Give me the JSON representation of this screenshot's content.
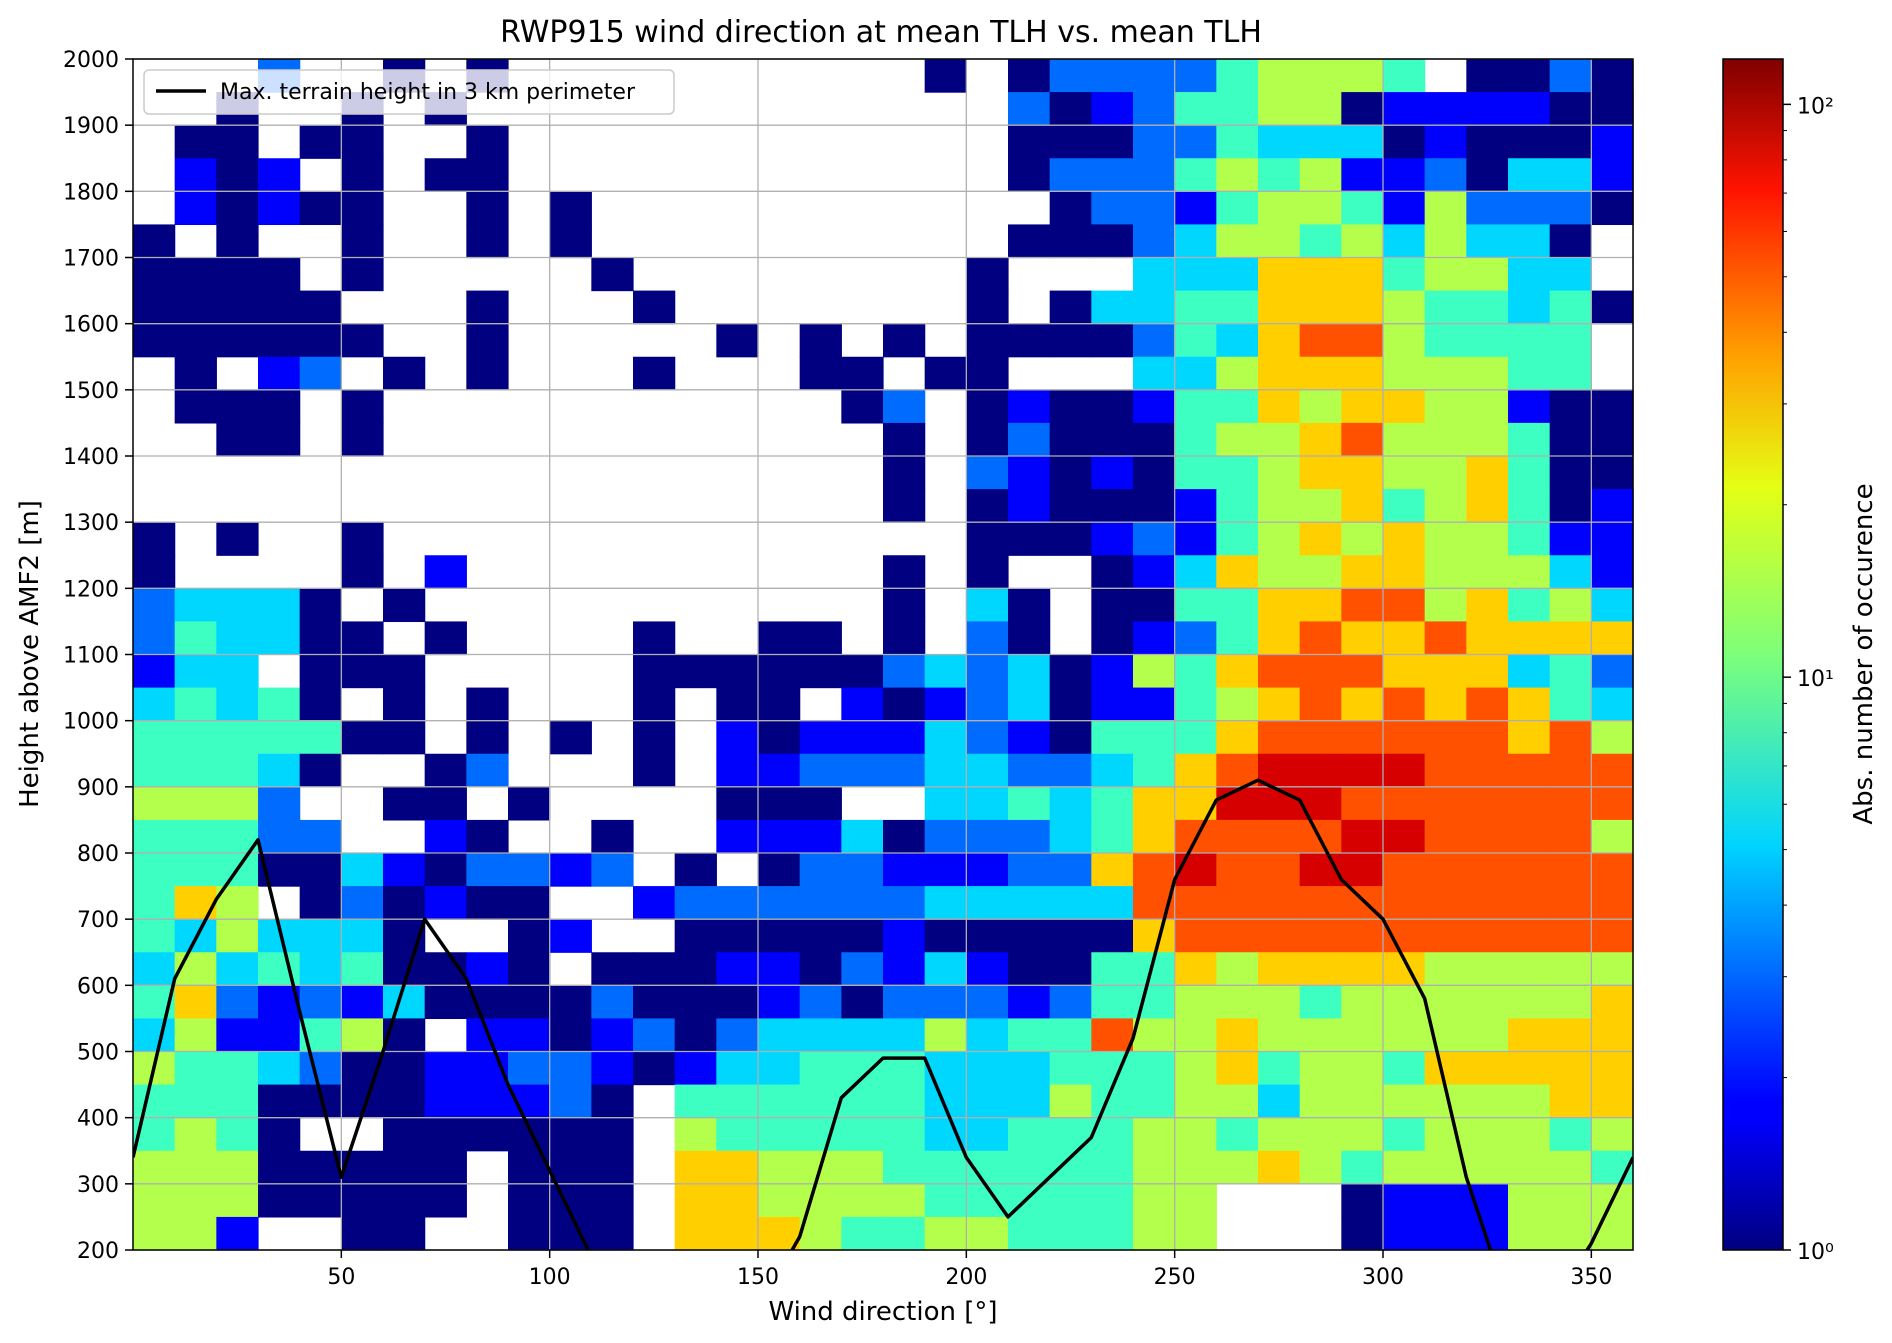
{
  "chart_data": {
    "type": "heatmap",
    "title": "RWP915 wind direction at mean TLH vs. mean TLH",
    "xlabel": "Wind direction [°]",
    "ylabel": "Height above AMF2 [m]",
    "xlim": [
      0,
      360
    ],
    "ylim": [
      200,
      2000
    ],
    "x_ticks": [
      50,
      100,
      150,
      200,
      250,
      300,
      350
    ],
    "y_ticks": [
      200,
      300,
      400,
      500,
      600,
      700,
      800,
      900,
      1000,
      1100,
      1200,
      1300,
      1400,
      1500,
      1600,
      1700,
      1800,
      1900,
      2000
    ],
    "x_bin_width": 10,
    "y_bin_height": 50,
    "y_bin_start": 200,
    "grid": true,
    "colormap": "jet",
    "color_scale": "log",
    "colorbar": {
      "label": "Abs. number of occurence",
      "min": 1,
      "max": 120,
      "ticks": [
        {
          "value": 1,
          "label": "10⁰"
        },
        {
          "value": 10,
          "label": "10¹"
        },
        {
          "value": 100,
          "label": "10²"
        }
      ]
    },
    "legend": {
      "placement": "top-left",
      "entries": [
        "Max. terrain height in 3 km perimeter"
      ]
    },
    "bin_legend": "0 = empty; 1..9 map to counts 1, 1.8, 3, 5, 8, 14, 25, 45, 80",
    "bin_counts_map": [
      0,
      1,
      1.8,
      3,
      5,
      8,
      14,
      25,
      45,
      80
    ],
    "bins_rows_top_to_bottom": [
      "000300101000000000010133335666501131000",
      "001001010000000000000312355661222211100",
      "011011001000000000000111335444121112313",
      "021201011000000000000133356562231442102",
      "021211001010000000000013325665263331101",
      "101001001010000000000111346656464410101",
      "111101000001000000001000444777566440111",
      "111110001000100000001014455777655451001",
      "111111001000001010101111354788655550112",
      "010230101000100011011000446777666550101",
      "011101000000000001301211255767766211101",
      "001101000000000000101311156678666511111",
      "000000000000000000103212155677667511021",
      "000000000000000000101211125667567512242",
      "101001000000000000001112325676766522111",
      "100001020000000000101001247667766642111",
      "344410100000000000104101155778867564431",
      "354411010000100110103101235787787777342",
      "244011100000111111343412657888777453343",
      "454510101000101102123412256787878754332",
      "555551101010102122243215557888888786442",
      "555410013000102233344334578999988888666",
      "666300110100001110044545779998888888776",
      "555330021001002224133345788889988886777",
      "555114213323010133222337898899888888763",
      "576013121100233333344444888888888888785",
      "546444100120011111211111788888888888785",
      "464545112101112213242115576777766666764",
      "573232411113111231333235566656666667764",
      "462256102212313444464558667666666777762",
      "655431122332124455544455567566577777759",
      "555111122231055555544465566466666677883",
      "565100111111065555544555665666566656689",
      "666111110111077666555555666765666665585",
      "666111110111077666655555660001222666589",
      "662001100111077765566555660001222666588"
    ],
    "terrain_line": {
      "name": "Max. terrain height in 3 km perimeter",
      "x": [
        0,
        10,
        20,
        30,
        40,
        50,
        60,
        70,
        80,
        90,
        100,
        110,
        120,
        130,
        140,
        150,
        160,
        170,
        180,
        190,
        200,
        210,
        220,
        230,
        240,
        250,
        260,
        270,
        280,
        290,
        300,
        310,
        320,
        330,
        340,
        350,
        360
      ],
      "y": [
        340,
        610,
        730,
        820,
        560,
        310,
        500,
        700,
        610,
        450,
        320,
        190,
        130,
        120,
        100,
        110,
        220,
        430,
        490,
        490,
        340,
        250,
        310,
        370,
        520,
        760,
        880,
        910,
        880,
        760,
        700,
        580,
        310,
        120,
        110,
        210,
        340
      ]
    }
  }
}
